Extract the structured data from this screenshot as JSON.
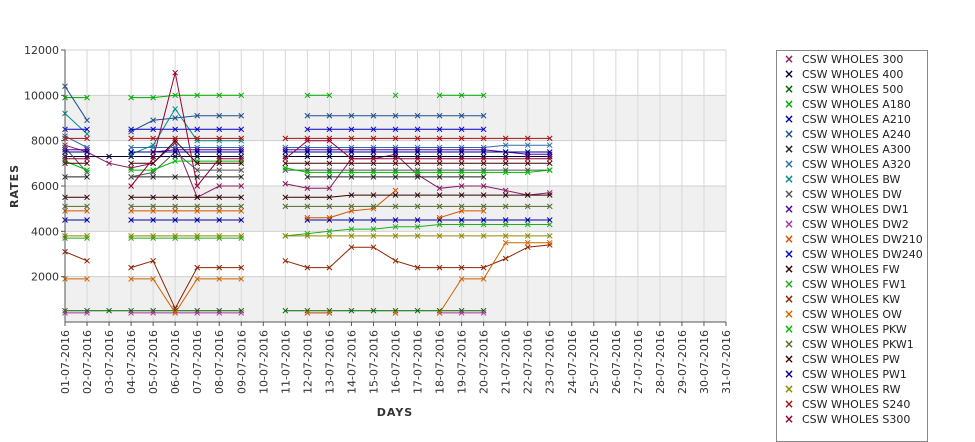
{
  "chart_data": {
    "type": "line",
    "xlabel": "DAYS",
    "ylabel": "RATES",
    "ylim": [
      0,
      12000
    ],
    "yticks": [
      2000,
      4000,
      6000,
      8000,
      10000,
      12000
    ],
    "ytick_labels": [
      "2000",
      "4000",
      "6000",
      "8000",
      "10000",
      "12000"
    ],
    "x_labels": [
      "01-07-2016",
      "02-07-2016",
      "03-07-2016",
      "04-07-2016",
      "05-07-2016",
      "06-07-2016",
      "07-07-2016",
      "08-07-2016",
      "09-07-2016",
      "10-07-2016",
      "11-07-2016",
      "12-07-2016",
      "13-07-2016",
      "14-07-2016",
      "15-07-2016",
      "16-07-2016",
      "17-07-2016",
      "18-07-2016",
      "19-07-2016",
      "20-07-2016",
      "21-07-2016",
      "22-07-2016",
      "23-07-2016",
      "24-07-2016",
      "25-07-2016",
      "26-07-2016",
      "27-07-2016",
      "28-07-2016",
      "29-07-2016",
      "30-07-2016",
      "31-07-2016"
    ],
    "grid": "horizontal bands",
    "legend_position": "right",
    "series": [
      {
        "name": "CSW WHOLES 300",
        "color": "#8b1c62",
        "values": [
          7800,
          7500,
          7000,
          6800,
          7000,
          7900,
          5500,
          6000,
          6000,
          null,
          6100,
          5900,
          5900,
          7200,
          7200,
          7400,
          6500,
          5900,
          6000,
          6000,
          5800,
          5600,
          5700
        ]
      },
      {
        "name": "CSW WHOLES 400",
        "color": "#000033",
        "values": [
          7300,
          7300,
          7300,
          7300,
          7300,
          7300,
          7300,
          7300,
          7300,
          null,
          7300,
          7300,
          7300,
          7300,
          7300,
          7300,
          7300,
          7300,
          7300,
          7300,
          7300,
          7300,
          7300
        ]
      },
      {
        "name": "CSW WHOLES 500",
        "color": "#006400",
        "values": [
          500,
          500,
          500,
          500,
          500,
          500,
          500,
          500,
          500,
          null,
          500,
          500,
          500,
          500,
          500,
          500,
          500,
          500,
          500,
          500,
          null,
          null,
          null
        ]
      },
      {
        "name": "CSW WHOLES A180",
        "color": "#00aa00",
        "values": [
          9900,
          9900,
          null,
          9900,
          9900,
          10000,
          10000,
          10000,
          10000,
          null,
          null,
          10000,
          10000,
          null,
          null,
          10000,
          null,
          10000,
          10000,
          10000,
          null,
          null,
          null
        ]
      },
      {
        "name": "CSW WHOLES A210",
        "color": "#0000aa",
        "values": [
          4500,
          4500,
          null,
          4500,
          4500,
          4500,
          4500,
          4500,
          4500,
          null,
          null,
          4500,
          4500,
          4500,
          4500,
          4500,
          4500,
          4500,
          4500,
          4500,
          4500,
          4500,
          4500
        ]
      },
      {
        "name": "CSW WHOLES A240",
        "color": "#1f4f8f",
        "values": [
          10400,
          8900,
          null,
          8400,
          8900,
          9000,
          9100,
          9100,
          9100,
          null,
          null,
          9100,
          9100,
          9100,
          9100,
          9100,
          9100,
          9100,
          9100,
          9100,
          null,
          null,
          null
        ]
      },
      {
        "name": "CSW WHOLES A300",
        "color": "#222222",
        "values": [
          6400,
          6400,
          null,
          6400,
          6400,
          6400,
          6400,
          6400,
          6400,
          null,
          null,
          6400,
          6400,
          6400,
          6400,
          6400,
          6400,
          6400,
          6400,
          6400,
          null,
          null,
          null
        ]
      },
      {
        "name": "CSW WHOLES A320",
        "color": "#2e6ea8",
        "values": [
          8200,
          7700,
          null,
          7700,
          7700,
          7700,
          7700,
          7700,
          7700,
          null,
          7700,
          7700,
          7700,
          7700,
          7700,
          7700,
          7700,
          7700,
          7700,
          7700,
          7800,
          7800,
          7800
        ]
      },
      {
        "name": "CSW WHOLES BW",
        "color": "#008b8b",
        "values": [
          9200,
          8300,
          null,
          7400,
          7800,
          9400,
          8000,
          8000,
          8000,
          null,
          null,
          7500,
          7500,
          7500,
          7500,
          7500,
          7500,
          7500,
          7500,
          7500,
          null,
          null,
          null
        ]
      },
      {
        "name": "CSW WHOLES DW",
        "color": "#555555",
        "values": [
          7700,
          6600,
          null,
          6400,
          6600,
          7500,
          6700,
          6700,
          6700,
          null,
          6700,
          6700,
          6700,
          6700,
          6700,
          6700,
          6700,
          6700,
          6700,
          6700,
          6700,
          6700,
          6700
        ]
      },
      {
        "name": "CSW WHOLES DW1",
        "color": "#5500aa",
        "values": [
          7600,
          7600,
          null,
          7500,
          7500,
          7600,
          7600,
          7600,
          7600,
          null,
          7600,
          7600,
          7600,
          7600,
          7600,
          7600,
          7600,
          7600,
          7600,
          7600,
          7500,
          7400,
          7400
        ]
      },
      {
        "name": "CSW WHOLES DW2",
        "color": "#aa3399",
        "values": [
          400,
          400,
          null,
          400,
          400,
          400,
          400,
          400,
          400,
          null,
          null,
          400,
          400,
          null,
          null,
          400,
          null,
          400,
          400,
          400,
          null,
          null,
          null
        ]
      },
      {
        "name": "CSW WHOLES DW210",
        "color": "#cc5500",
        "values": [
          4900,
          4900,
          null,
          4900,
          4900,
          4900,
          4900,
          4900,
          4900,
          null,
          null,
          4600,
          4600,
          4900,
          5000,
          5800,
          null,
          4600,
          4900,
          4900,
          null,
          null,
          null
        ]
      },
      {
        "name": "CSW WHOLES DW240",
        "color": "#0000cc",
        "values": [
          8500,
          8500,
          null,
          8500,
          8500,
          8500,
          8500,
          8500,
          8500,
          null,
          null,
          8500,
          8500,
          8500,
          8500,
          8500,
          8500,
          8500,
          8500,
          8500,
          null,
          null,
          null
        ]
      },
      {
        "name": "CSW WHOLES FW",
        "color": "#330000",
        "values": [
          5500,
          5500,
          null,
          5500,
          5500,
          5500,
          5500,
          5500,
          5500,
          null,
          5500,
          5500,
          5500,
          5600,
          5600,
          5600,
          5600,
          5600,
          5600,
          5600,
          5600,
          5600,
          5600
        ]
      },
      {
        "name": "CSW WHOLES FW1",
        "color": "#22aa22",
        "values": [
          3700,
          3700,
          null,
          3700,
          3700,
          3700,
          3700,
          3700,
          3700,
          null,
          3800,
          3900,
          4000,
          4100,
          4100,
          4200,
          4200,
          4300,
          4300,
          4300,
          4300,
          4300,
          4300
        ]
      },
      {
        "name": "CSW WHOLES KW",
        "color": "#8b2500",
        "values": [
          3100,
          2700,
          null,
          2400,
          2700,
          600,
          2400,
          2400,
          2400,
          null,
          2700,
          2400,
          2400,
          3300,
          3300,
          2700,
          2400,
          2400,
          2400,
          2400,
          2800,
          3300,
          3400
        ]
      },
      {
        "name": "CSW WHOLES OW",
        "color": "#cd6600",
        "values": [
          1900,
          1900,
          null,
          1900,
          1900,
          400,
          1900,
          1900,
          1900,
          null,
          null,
          400,
          400,
          null,
          null,
          400,
          null,
          400,
          1900,
          1900,
          3500,
          3500,
          3500
        ]
      },
      {
        "name": "CSW WHOLES PKW",
        "color": "#00bb00",
        "values": [
          7100,
          6700,
          null,
          6700,
          6700,
          7100,
          7100,
          7100,
          7100,
          null,
          6800,
          6600,
          6600,
          6600,
          6600,
          6600,
          6600,
          6600,
          6600,
          6600,
          6600,
          6600,
          6700
        ]
      },
      {
        "name": "CSW WHOLES PKW1",
        "color": "#556b2f",
        "values": [
          5100,
          5100,
          null,
          5100,
          5100,
          5100,
          5100,
          5100,
          5100,
          null,
          5100,
          5100,
          5100,
          5100,
          5100,
          5100,
          5100,
          5100,
          5100,
          5100,
          5100,
          5100,
          5100
        ]
      },
      {
        "name": "CSW WHOLES PW",
        "color": "#440000",
        "values": [
          7000,
          7000,
          null,
          7000,
          7000,
          8000,
          7000,
          7000,
          7000,
          null,
          7000,
          7000,
          7000,
          7000,
          7000,
          7000,
          7000,
          7000,
          7000,
          7000,
          7000,
          7000,
          7000
        ]
      },
      {
        "name": "CSW WHOLES PW1",
        "color": "#000088",
        "values": [
          7500,
          7500,
          null,
          7500,
          7500,
          7500,
          7500,
          7500,
          7500,
          null,
          7500,
          7500,
          7500,
          7500,
          7500,
          7500,
          7500,
          7500,
          7500,
          7500,
          7500,
          7500,
          7500
        ]
      },
      {
        "name": "CSW WHOLES RW",
        "color": "#8b8b00",
        "values": [
          3800,
          3800,
          null,
          3800,
          3800,
          3800,
          3800,
          3800,
          3800,
          null,
          3800,
          3800,
          3800,
          3800,
          3800,
          3800,
          3800,
          3800,
          3800,
          3800,
          3800,
          3800,
          3800
        ]
      },
      {
        "name": "CSW WHOLES S240",
        "color": "#aa1111",
        "values": [
          8100,
          8100,
          null,
          8100,
          8100,
          8100,
          8100,
          8100,
          8100,
          null,
          8100,
          8100,
          8100,
          8100,
          8100,
          8100,
          8100,
          8100,
          8100,
          8100,
          8100,
          8100,
          8100
        ]
      },
      {
        "name": "CSW WHOLES S300",
        "color": "#990033",
        "values": [
          7200,
          7200,
          null,
          6000,
          7200,
          11000,
          6000,
          7200,
          7200,
          null,
          7200,
          8000,
          8000,
          7200,
          7200,
          7200,
          7200,
          7200,
          7200,
          7200,
          7200,
          7200,
          7200
        ]
      }
    ]
  }
}
